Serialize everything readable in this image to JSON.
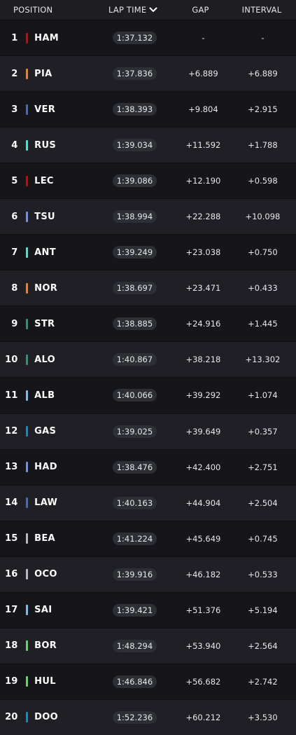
{
  "header": {
    "position": "POSITION",
    "lap_time": "LAP TIME",
    "gap": "GAP",
    "interval": "INTERVAL",
    "sort_icon": "chevron-down-icon"
  },
  "rows": [
    {
      "pos": "1",
      "code": "HAM",
      "color": "#dc0000",
      "lap": "1:37.132",
      "gap": "-",
      "int": "-"
    },
    {
      "pos": "2",
      "code": "PIA",
      "color": "#ff8000",
      "lap": "1:37.836",
      "gap": "+6.889",
      "int": "+6.889"
    },
    {
      "pos": "3",
      "code": "VER",
      "color": "#3671c6",
      "lap": "1:38.393",
      "gap": "+9.804",
      "int": "+2.915"
    },
    {
      "pos": "4",
      "code": "RUS",
      "color": "#27f4d2",
      "lap": "1:39.034",
      "gap": "+11.592",
      "int": "+1.788"
    },
    {
      "pos": "5",
      "code": "LEC",
      "color": "#dc0000",
      "lap": "1:39.086",
      "gap": "+12.190",
      "int": "+0.598"
    },
    {
      "pos": "6",
      "code": "TSU",
      "color": "#6692ff",
      "lap": "1:38.994",
      "gap": "+22.288",
      "int": "+10.098"
    },
    {
      "pos": "7",
      "code": "ANT",
      "color": "#27f4d2",
      "lap": "1:39.249",
      "gap": "+23.038",
      "int": "+0.750"
    },
    {
      "pos": "8",
      "code": "NOR",
      "color": "#ff8000",
      "lap": "1:38.697",
      "gap": "+23.471",
      "int": "+0.433"
    },
    {
      "pos": "9",
      "code": "STR",
      "color": "#229971",
      "lap": "1:38.885",
      "gap": "+24.916",
      "int": "+1.445"
    },
    {
      "pos": "10",
      "code": "ALO",
      "color": "#229971",
      "lap": "1:40.867",
      "gap": "+38.218",
      "int": "+13.302"
    },
    {
      "pos": "11",
      "code": "ALB",
      "color": "#64c4ff",
      "lap": "1:40.066",
      "gap": "+39.292",
      "int": "+1.074"
    },
    {
      "pos": "12",
      "code": "GAS",
      "color": "#0093cc",
      "lap": "1:39.025",
      "gap": "+39.649",
      "int": "+0.357"
    },
    {
      "pos": "13",
      "code": "HAD",
      "color": "#6692ff",
      "lap": "1:38.476",
      "gap": "+42.400",
      "int": "+2.751"
    },
    {
      "pos": "14",
      "code": "LAW",
      "color": "#3671c6",
      "lap": "1:40.163",
      "gap": "+44.904",
      "int": "+2.504"
    },
    {
      "pos": "15",
      "code": "BEA",
      "color": "#b6babd",
      "lap": "1:41.224",
      "gap": "+45.649",
      "int": "+0.745"
    },
    {
      "pos": "16",
      "code": "OCO",
      "color": "#b6babd",
      "lap": "1:39.916",
      "gap": "+46.182",
      "int": "+0.533"
    },
    {
      "pos": "17",
      "code": "SAI",
      "color": "#64c4ff",
      "lap": "1:39.421",
      "gap": "+51.376",
      "int": "+5.194"
    },
    {
      "pos": "18",
      "code": "BOR",
      "color": "#52e252",
      "lap": "1:48.294",
      "gap": "+53.940",
      "int": "+2.564"
    },
    {
      "pos": "19",
      "code": "HUL",
      "color": "#52e252",
      "lap": "1:46.846",
      "gap": "+56.682",
      "int": "+2.742"
    },
    {
      "pos": "20",
      "code": "DOO",
      "color": "#0093cc",
      "lap": "1:52.236",
      "gap": "+60.212",
      "int": "+3.530"
    }
  ]
}
